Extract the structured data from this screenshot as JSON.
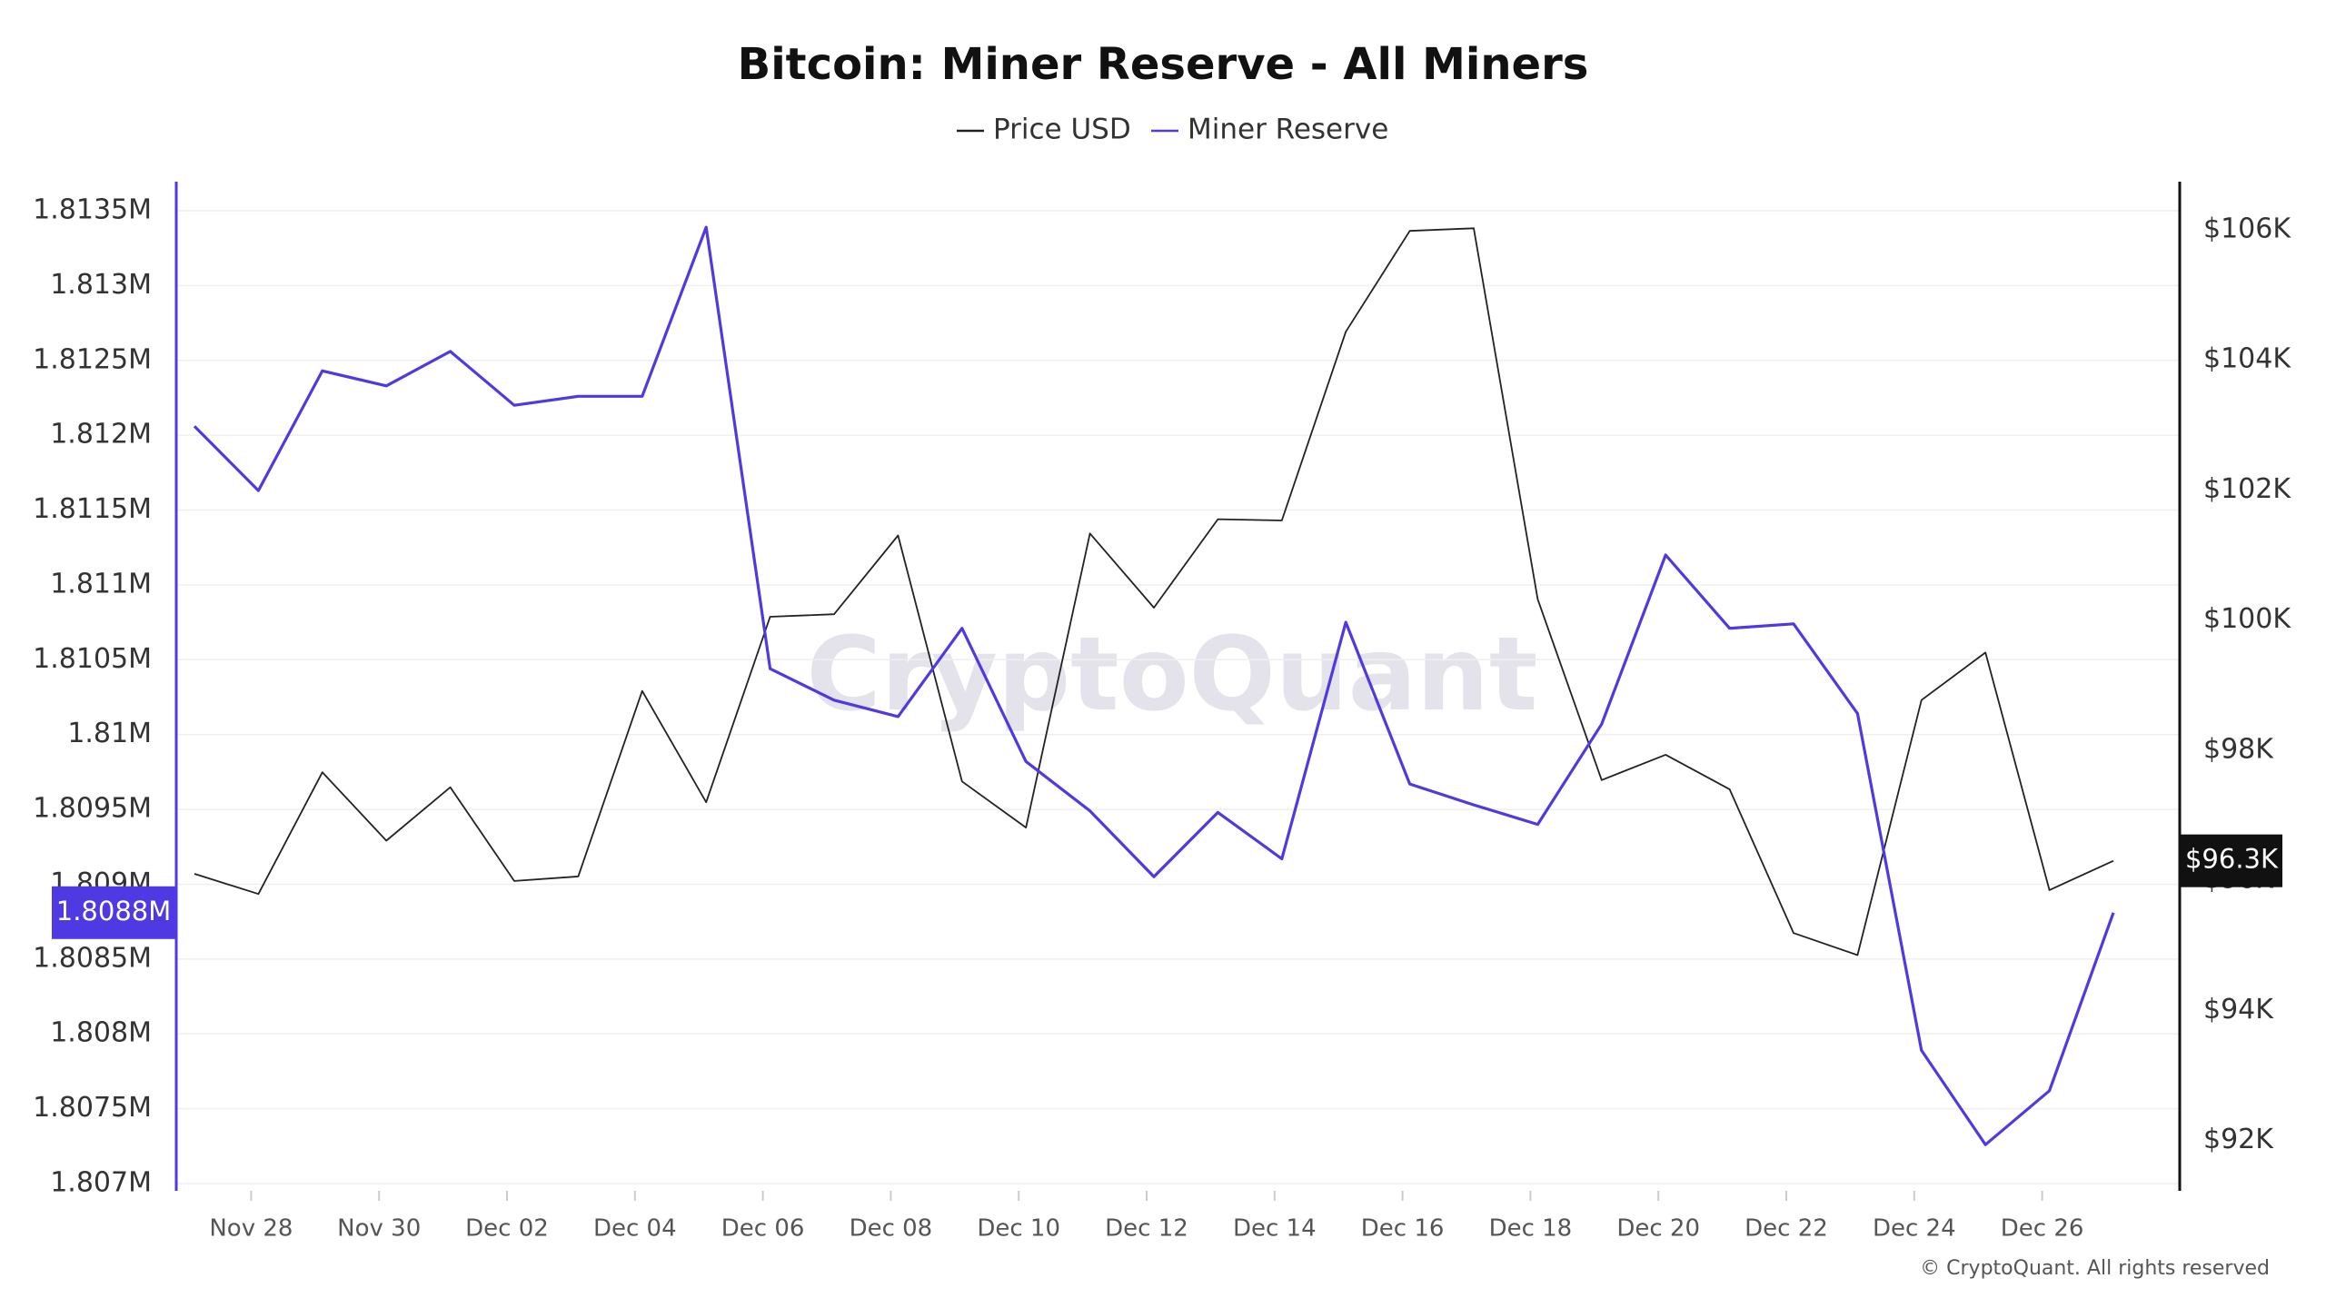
{
  "chart_data": {
    "type": "line",
    "title": "Bitcoin: Miner Reserve - All Miners",
    "watermark": "CryptoQuant",
    "copyright": "© CryptoQuant. All rights reserved",
    "categories": [
      null,
      "Nov 28",
      null,
      "Nov 30",
      null,
      "Dec 02",
      null,
      "Dec 04",
      null,
      "Dec 06",
      null,
      "Dec 08",
      null,
      "Dec 10",
      null,
      "Dec 12",
      null,
      "Dec 14",
      null,
      "Dec 16",
      null,
      "Dec 18",
      null,
      "Dec 20",
      null,
      "Dec 22",
      null,
      "Dec 24",
      null,
      "Dec 26",
      null
    ],
    "series": [
      {
        "name": "Price USD",
        "color": "#222222",
        "axis": "y2",
        "last_label": "$96.3K",
        "values": [
          96100,
          95790,
          97660,
          96610,
          97430,
          95990,
          96060,
          98910,
          97200,
          100050,
          100090,
          101300,
          97520,
          96810,
          101330,
          100190,
          101550,
          101530,
          104430,
          105980,
          106020,
          100320,
          97540,
          97930,
          97400,
          95190,
          94850,
          98770,
          99500,
          95850,
          96300
        ]
      },
      {
        "name": "Miner Reserve",
        "color": "#4f39e3",
        "last_label": "1.8088M",
        "values": [
          1812060,
          1811630,
          1812430,
          1812330,
          1812560,
          1812200,
          1812260,
          1812260,
          1813390,
          1810440,
          1810230,
          1810120,
          1810710,
          1809820,
          1809490,
          1809050,
          1809480,
          1809170,
          1810750,
          1809670,
          1809530,
          1809400,
          1810070,
          1811200,
          1810710,
          1810740,
          1810140,
          1807890,
          1807260,
          1807620,
          1808810
        ]
      }
    ],
    "ylim": [
      1807000,
      1813500
    ],
    "yticks": [
      {
        "value": 1807000,
        "label": "1.807M"
      },
      {
        "value": 1807500,
        "label": "1.8075M"
      },
      {
        "value": 1808000,
        "label": "1.808M"
      },
      {
        "value": 1808500,
        "label": "1.8085M"
      },
      {
        "value": 1809000,
        "label": "1.809M"
      },
      {
        "value": 1809500,
        "label": "1.8095M"
      },
      {
        "value": 1810000,
        "label": "1.81M"
      },
      {
        "value": 1810500,
        "label": "1.8105M"
      },
      {
        "value": 1811000,
        "label": "1.811M"
      },
      {
        "value": 1811500,
        "label": "1.8115M"
      },
      {
        "value": 1812000,
        "label": "1.812M"
      },
      {
        "value": 1812500,
        "label": "1.8125M"
      },
      {
        "value": 1813000,
        "label": "1.813M"
      },
      {
        "value": 1813500,
        "label": "1.8135M"
      }
    ],
    "y2lim": [
      91340,
      106290
    ],
    "y2ticks": [
      {
        "value": 92000,
        "label": "$92K"
      },
      {
        "value": 94000,
        "label": "$94K"
      },
      {
        "value": 96000,
        "label": "$96K"
      },
      {
        "value": 98000,
        "label": "$98K"
      },
      {
        "value": 100000,
        "label": "$100K"
      },
      {
        "value": 102000,
        "label": "$102K"
      },
      {
        "value": 104000,
        "label": "$104K"
      },
      {
        "value": 106000,
        "label": "$106K"
      }
    ],
    "grid": true
  }
}
